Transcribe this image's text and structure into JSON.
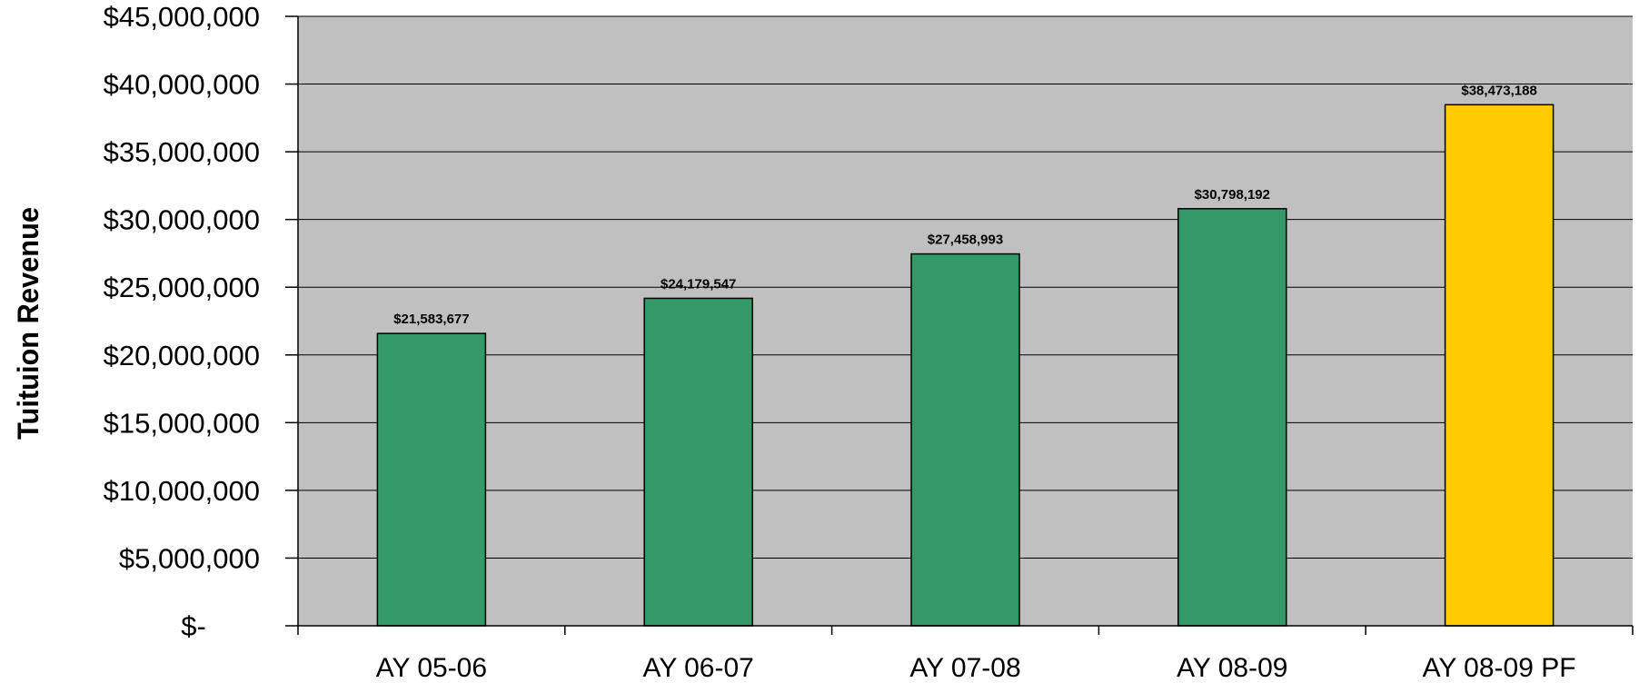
{
  "chart_data": {
    "type": "bar",
    "ylabel": "Tuituion Revenue",
    "xlabel": "",
    "title": "",
    "categories": [
      "AY 05-06",
      "AY 06-07",
      "AY 07-08",
      "AY 08-09",
      "AY 08-09 PF"
    ],
    "values": [
      21583677,
      24179547,
      27458993,
      30798192,
      38473188
    ],
    "data_labels": [
      "$21,583,677",
      "$24,179,547",
      "$27,458,993",
      "$30,798,192",
      "$38,473,188"
    ],
    "y_ticks": [
      0,
      5000000,
      10000000,
      15000000,
      20000000,
      25000000,
      30000000,
      35000000,
      40000000,
      45000000
    ],
    "y_tick_labels": [
      "$-",
      "$5,000,000",
      "$10,000,000",
      "$15,000,000",
      "$20,000,000",
      "$25,000,000",
      "$30,000,000",
      "$35,000,000",
      "$40,000,000",
      "$45,000,000"
    ],
    "ylim": [
      0,
      45000000
    ],
    "grid": true,
    "legend": "none",
    "colors": {
      "plot_background": "#c0c0c0",
      "bar_default": "#339966",
      "bar_highlight": "#ffcc00",
      "bar_outline": "#000000",
      "gridline": "#000000"
    },
    "highlight_index": 4
  }
}
